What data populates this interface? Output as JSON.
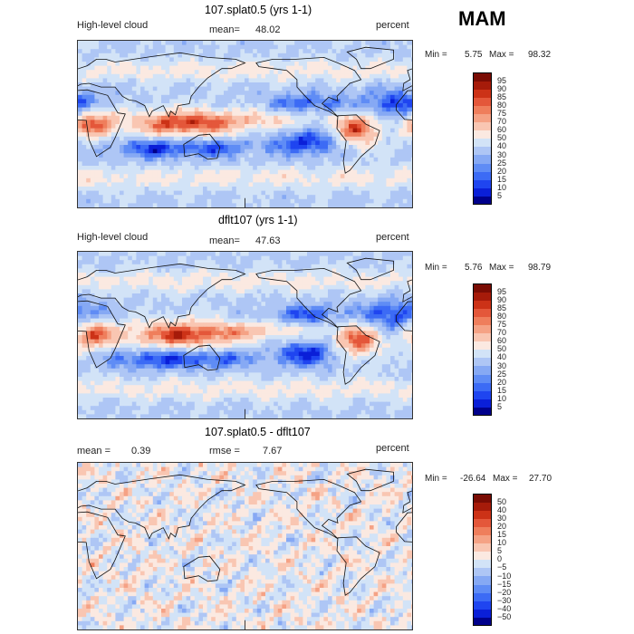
{
  "season": "MAM",
  "chart_data": [
    {
      "type": "heatmap",
      "title": "107.splat0.5 (yrs 1-1)",
      "variable": "High-level cloud",
      "units": "percent",
      "mean_label": "mean=",
      "mean": "48.02",
      "min_label": "Min =",
      "min": "5.75",
      "max_label": "Max =",
      "max": "98.32",
      "levels": [
        "5",
        "10",
        "15",
        "20",
        "25",
        "30",
        "40",
        "50",
        "60",
        "70",
        "75",
        "80",
        "85",
        "90",
        "95"
      ],
      "colors": [
        "#00008b",
        "#0a1fd8",
        "#1f45f0",
        "#3c6bf5",
        "#5f8cf5",
        "#86a9f4",
        "#aec6f5",
        "#d2e3f7",
        "#fbe9e1",
        "#f9c6b2",
        "#f5a285",
        "#ef7e5c",
        "#e4573a",
        "#cc3217",
        "#a61b0a",
        "#7a0c04"
      ],
      "field_type": "cloud"
    },
    {
      "type": "heatmap",
      "title": "dflt107 (yrs 1-1)",
      "variable": "High-level cloud",
      "units": "percent",
      "mean_label": "mean=",
      "mean": "47.63",
      "min_label": "Min =",
      "min": "5.76",
      "max_label": "Max =",
      "max": "98.79",
      "levels": [
        "5",
        "10",
        "15",
        "20",
        "25",
        "30",
        "40",
        "50",
        "60",
        "70",
        "75",
        "80",
        "85",
        "90",
        "95"
      ],
      "colors": [
        "#00008b",
        "#0a1fd8",
        "#1f45f0",
        "#3c6bf5",
        "#5f8cf5",
        "#86a9f4",
        "#aec6f5",
        "#d2e3f7",
        "#fbe9e1",
        "#f9c6b2",
        "#f5a285",
        "#ef7e5c",
        "#e4573a",
        "#cc3217",
        "#a61b0a",
        "#7a0c04"
      ],
      "field_type": "cloud"
    },
    {
      "type": "heatmap",
      "title": "107.splat0.5 - dflt107",
      "variable": "",
      "units": "percent",
      "mean_label": "mean =",
      "mean": "0.39",
      "rmse_label": "rmse =",
      "rmse": "7.67",
      "min_label": "Min =",
      "min": "-26.64",
      "max_label": "Max =",
      "max": "27.70",
      "levels": [
        "−50",
        "−40",
        "−30",
        "−20",
        "−15",
        "−10",
        "−5",
        "0",
        "5",
        "10",
        "15",
        "20",
        "30",
        "40",
        "50"
      ],
      "colors": [
        "#00008b",
        "#0a1fd8",
        "#1f45f0",
        "#3c6bf5",
        "#5f8cf5",
        "#86a9f4",
        "#aec6f5",
        "#d2e3f7",
        "#fbe9e1",
        "#f9c6b2",
        "#f5a285",
        "#ef7e5c",
        "#e4573a",
        "#cc3217",
        "#a61b0a",
        "#7a0c04"
      ],
      "field_type": "diff"
    }
  ]
}
